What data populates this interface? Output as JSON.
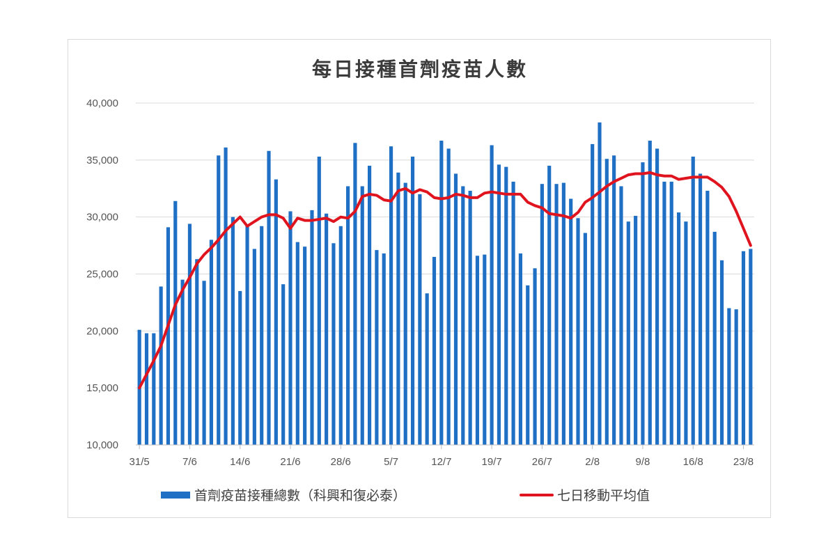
{
  "chart_data": {
    "type": "bar",
    "title": "每日接種首劑疫苗人數",
    "xlabel": "",
    "ylabel": "",
    "ylim": [
      10000,
      40000
    ],
    "yticks": [
      "10,000",
      "15,000",
      "20,000",
      "25,000",
      "30,000",
      "35,000",
      "40,000"
    ],
    "ytick_values": [
      10000,
      15000,
      20000,
      25000,
      30000,
      35000,
      40000
    ],
    "xtick_labels": [
      "31/5",
      "7/6",
      "14/6",
      "21/6",
      "28/6",
      "5/7",
      "12/7",
      "19/7",
      "26/7",
      "2/8",
      "9/8",
      "16/8",
      "23/8"
    ],
    "xtick_indices": [
      0,
      7,
      14,
      21,
      28,
      35,
      42,
      49,
      56,
      63,
      70,
      77,
      84
    ],
    "grid": true,
    "legend_position": "bottom",
    "colors": {
      "bars": "#1f6fc4",
      "line": "#e0141e",
      "grid": "#d9d9d9"
    },
    "series": [
      {
        "name": "首劑疫苗接種總數（科興和復必泰）",
        "type": "bar",
        "values": [
          20100,
          19800,
          19800,
          23900,
          29100,
          31400,
          24500,
          29400,
          26300,
          24400,
          28000,
          35400,
          36100,
          30000,
          23500,
          29200,
          27200,
          29200,
          35800,
          33300,
          24100,
          30500,
          27800,
          27400,
          30600,
          35300,
          30300,
          27700,
          29200,
          32700,
          36500,
          32700,
          34500,
          27100,
          26800,
          36200,
          33900,
          33000,
          35300,
          32000,
          23300,
          26500,
          36700,
          36000,
          33800,
          32700,
          32300,
          26600,
          26700,
          36300,
          34600,
          34400,
          33100,
          26800,
          24000,
          25500,
          32900,
          34500,
          32900,
          33000,
          31600,
          29900,
          28600,
          36400,
          38300,
          35100,
          35400,
          32700,
          29600,
          30100,
          34800,
          36700,
          36000,
          33100,
          33100,
          30400,
          29600,
          35300,
          33800,
          32300,
          28700,
          26200,
          22000,
          21900,
          27000,
          27200
        ]
      },
      {
        "name": "七日移動平均值",
        "type": "line",
        "values": [
          15000,
          16200,
          17400,
          18700,
          20500,
          22300,
          23600,
          24700,
          25900,
          26700,
          27300,
          28000,
          28800,
          29400,
          30000,
          29200,
          29600,
          30000,
          30200,
          30200,
          29900,
          29000,
          29900,
          29700,
          29700,
          29800,
          29900,
          29600,
          30000,
          29900,
          30500,
          31800,
          32000,
          31900,
          31500,
          31400,
          32300,
          32500,
          32100,
          32400,
          32200,
          31700,
          31600,
          31700,
          32000,
          31900,
          31700,
          31700,
          32100,
          32200,
          32100,
          32000,
          32000,
          32000,
          31300,
          31000,
          30800,
          30300,
          30200,
          30100,
          29900,
          30400,
          31300,
          31700,
          32200,
          32700,
          33100,
          33400,
          33700,
          33800,
          33800,
          33900,
          33700,
          33600,
          33600,
          33300,
          33400,
          33500,
          33500,
          33500,
          33100,
          32600,
          31800,
          30500,
          29000,
          27500
        ]
      }
    ]
  }
}
